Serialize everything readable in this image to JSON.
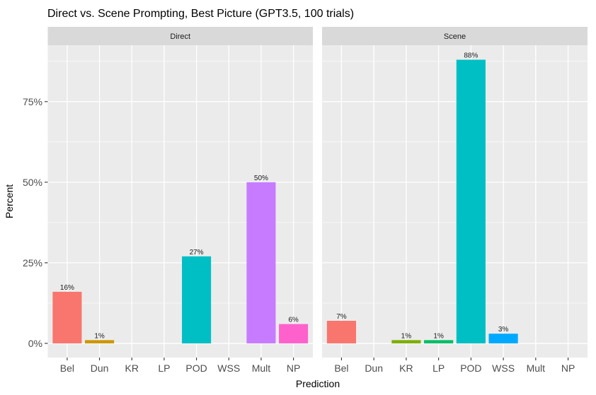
{
  "chart_data": {
    "type": "bar",
    "title": "Direct vs. Scene Prompting, Best Picture (GPT3.5, 100 trials)",
    "xlabel": "Prediction",
    "ylabel": "Percent",
    "ylim": [
      0,
      92.4
    ],
    "yticks": [
      0,
      25,
      50,
      75
    ],
    "ytick_labels": [
      "0%",
      "25%",
      "50%",
      "75%"
    ],
    "grid": true,
    "legend": "none",
    "categories": [
      "Bel",
      "Dun",
      "KR",
      "LP",
      "POD",
      "WSS",
      "Mult",
      "NP"
    ],
    "colors": [
      "#F8766D",
      "#CD9600",
      "#7CAE00",
      "#00BE67",
      "#00BFC4",
      "#00A9FF",
      "#C77CFF",
      "#FF61CC"
    ],
    "facets": [
      {
        "name": "Direct",
        "values": [
          16,
          1,
          0,
          0,
          27,
          0,
          50,
          6
        ],
        "labels": [
          "16%",
          "1%",
          "",
          "",
          "27%",
          "",
          "50%",
          "6%"
        ]
      },
      {
        "name": "Scene",
        "values": [
          7,
          0,
          1,
          1,
          88,
          3,
          0,
          0
        ],
        "labels": [
          "7%",
          "",
          "1%",
          "1%",
          "88%",
          "3%",
          "",
          ""
        ]
      }
    ]
  }
}
